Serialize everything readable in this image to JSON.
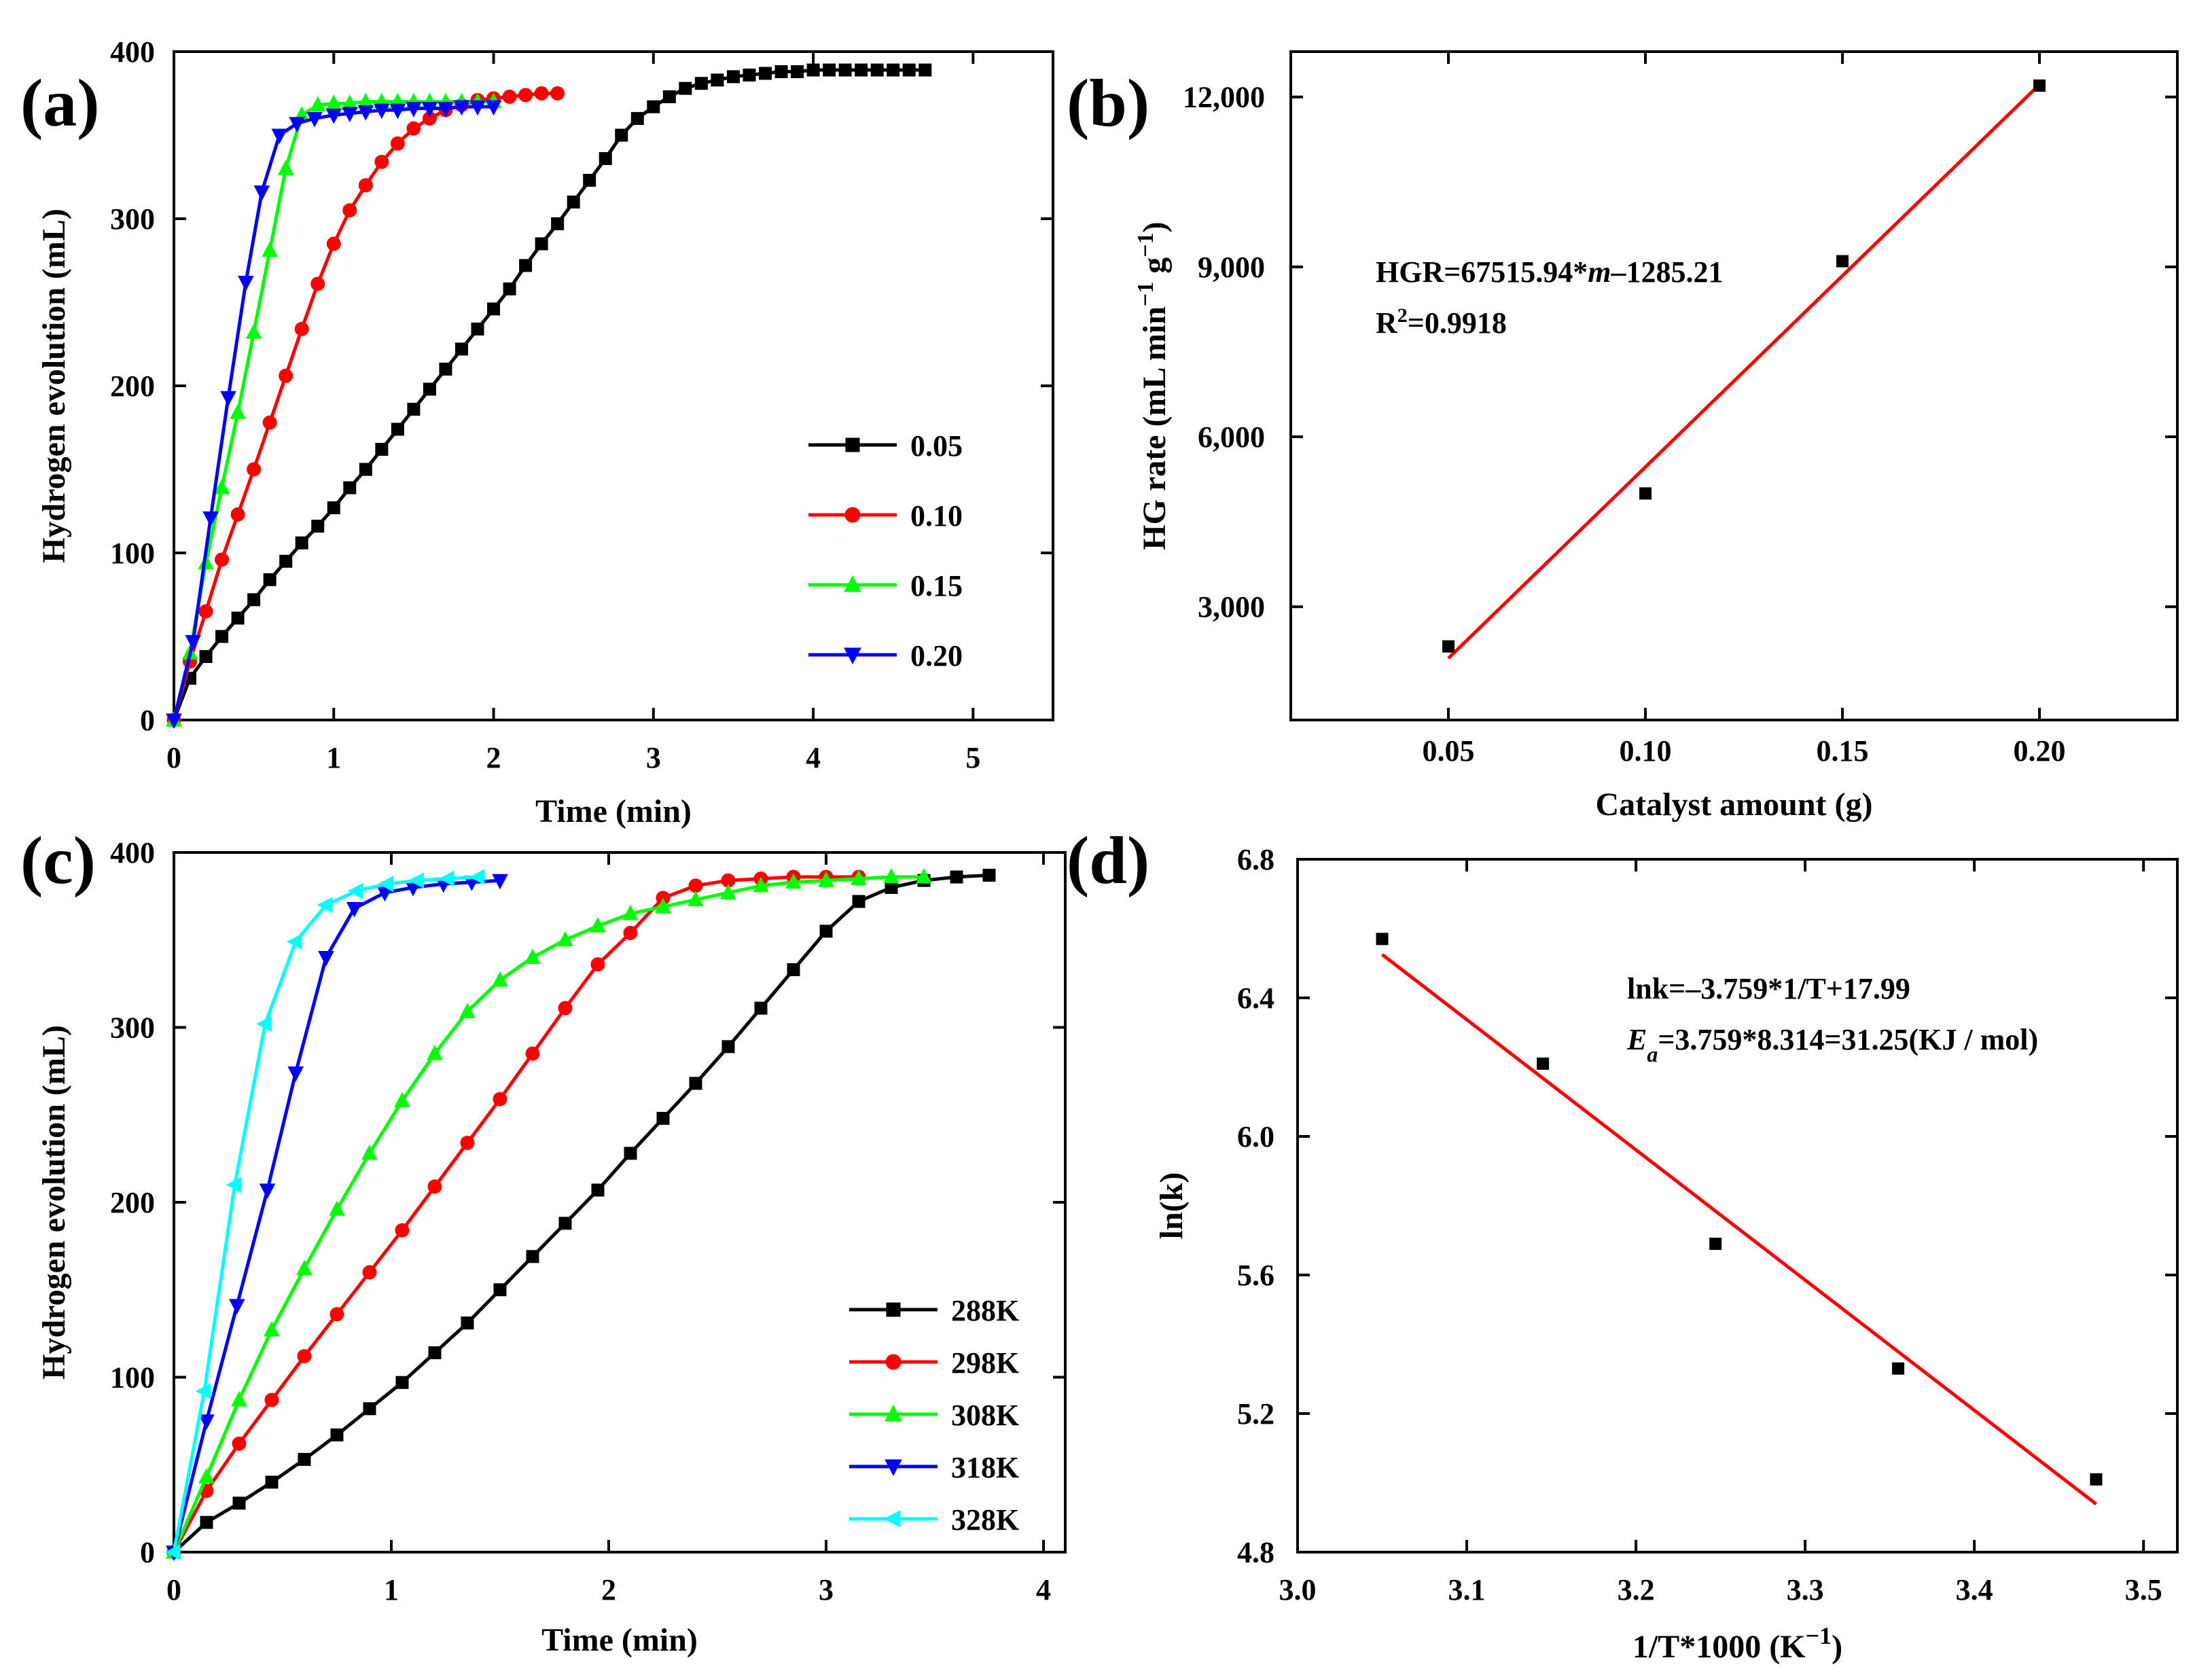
{
  "figure": {
    "title": ""
  },
  "chart_data": [
    {
      "panel": "(a)",
      "type": "line",
      "title": "",
      "xlabel": "Time (min)",
      "ylabel": "Hydrogen evolution (mL)",
      "xlim": [
        0,
        5.5
      ],
      "ylim": [
        0,
        400
      ],
      "xticks": [
        0,
        1,
        2,
        3,
        4,
        5
      ],
      "yticks": [
        0,
        100,
        200,
        300,
        400
      ],
      "legend_position": "right",
      "series": [
        {
          "name": "0.05",
          "color": "#000000",
          "marker": "square",
          "x": [
            0,
            0.1,
            0.2,
            0.3,
            0.4,
            0.5,
            0.6,
            0.7,
            0.8,
            0.9,
            1.0,
            1.1,
            1.2,
            1.3,
            1.4,
            1.5,
            1.6,
            1.7,
            1.8,
            1.9,
            2.0,
            2.1,
            2.2,
            2.3,
            2.4,
            2.5,
            2.6,
            2.7,
            2.8,
            2.9,
            3.0,
            3.1,
            3.2,
            3.3,
            3.4,
            3.5,
            3.6,
            3.7,
            3.8,
            3.9,
            4.0,
            4.1,
            4.2,
            4.3,
            4.4,
            4.5,
            4.6,
            4.7
          ],
          "y": [
            0,
            25,
            38,
            50,
            61,
            72,
            84,
            95,
            106,
            116,
            127,
            139,
            150,
            162,
            174,
            186,
            198,
            210,
            222,
            234,
            246,
            258,
            272,
            285,
            297,
            310,
            323,
            336,
            350,
            360,
            367,
            373,
            378,
            381,
            383,
            385,
            386,
            387,
            388,
            388,
            389,
            389,
            389,
            389,
            389,
            389,
            389,
            389
          ]
        },
        {
          "name": "0.10",
          "color": "#ff0000",
          "marker": "circle",
          "x": [
            0,
            0.1,
            0.2,
            0.3,
            0.4,
            0.5,
            0.6,
            0.7,
            0.8,
            0.9,
            1.0,
            1.1,
            1.2,
            1.3,
            1.4,
            1.5,
            1.6,
            1.7,
            1.8,
            1.9,
            2.0,
            2.1,
            2.2,
            2.3,
            2.4
          ],
          "y": [
            0,
            35,
            65,
            96,
            123,
            150,
            178,
            206,
            234,
            261,
            285,
            305,
            320,
            334,
            345,
            354,
            360,
            365,
            368,
            371,
            372,
            373,
            374,
            375,
            375
          ]
        },
        {
          "name": "0.15",
          "color": "#00ff00",
          "marker": "triangle-up",
          "x": [
            0,
            0.1,
            0.2,
            0.3,
            0.4,
            0.5,
            0.6,
            0.7,
            0.8,
            0.9,
            1.0,
            1.1,
            1.2,
            1.3,
            1.4,
            1.5,
            1.6,
            1.7,
            1.8,
            1.9,
            2.0
          ],
          "y": [
            0,
            40,
            94,
            139,
            184,
            232,
            281,
            330,
            362,
            368,
            369,
            369,
            370,
            370,
            370,
            370,
            370,
            370,
            370,
            370,
            370
          ]
        },
        {
          "name": "0.20",
          "color": "#0000ff",
          "marker": "triangle-down",
          "x": [
            0,
            0.12,
            0.23,
            0.34,
            0.45,
            0.55,
            0.66,
            0.77,
            0.88,
            1.0,
            1.1,
            1.2,
            1.3,
            1.4,
            1.5,
            1.6,
            1.7,
            1.8,
            1.9,
            2.0
          ],
          "y": [
            0,
            47,
            121,
            193,
            262,
            316,
            350,
            357,
            360,
            362,
            363,
            364,
            365,
            365,
            366,
            366,
            366,
            367,
            367,
            367
          ]
        }
      ]
    },
    {
      "panel": "(b)",
      "type": "scatter",
      "title": "",
      "xlabel": "Catalyst amount (g)",
      "ylabel": "HG rate (mL min⁻¹ g⁻¹)",
      "xlim": [
        0.01,
        0.235
      ],
      "ylim": [
        1000,
        12800
      ],
      "xticks": [
        0.05,
        0.1,
        0.15,
        0.2
      ],
      "xtick_labels": [
        "0.05",
        "0.10",
        "0.15",
        "0.20"
      ],
      "yticks": [
        3000,
        6000,
        9000,
        12000
      ],
      "ytick_labels": [
        "3,000",
        "6,000",
        "9,000",
        "12,000"
      ],
      "points": {
        "x": [
          0.05,
          0.1,
          0.15,
          0.2
        ],
        "y": [
          2300,
          5000,
          9100,
          12200
        ]
      },
      "fit": {
        "slope": 67515.94,
        "intercept": -1285.21,
        "x_range": [
          0.05,
          0.2
        ],
        "color": "#ff0000"
      },
      "annotations": [
        "HGR=67515.94*m–1285.21",
        "R²=0.9918"
      ]
    },
    {
      "panel": "(c)",
      "type": "line",
      "title": "",
      "xlabel": "Time (min)",
      "ylabel": "Hydrogen evolution (mL)",
      "xlim": [
        0,
        4.1
      ],
      "ylim": [
        0,
        400
      ],
      "xticks": [
        0,
        1,
        2,
        3,
        4
      ],
      "yticks": [
        0,
        100,
        200,
        300,
        400
      ],
      "legend_position": "bottom-right",
      "series": [
        {
          "name": "288K",
          "color": "#000000",
          "marker": "square",
          "x": [
            0,
            0.15,
            0.3,
            0.45,
            0.6,
            0.75,
            0.9,
            1.05,
            1.2,
            1.35,
            1.5,
            1.65,
            1.8,
            1.95,
            2.1,
            2.25,
            2.4,
            2.55,
            2.7,
            2.85,
            3.0,
            3.15,
            3.3,
            3.45,
            3.6,
            3.75
          ],
          "y": [
            0,
            17,
            28,
            40,
            53,
            67,
            82,
            97,
            114,
            131,
            150,
            169,
            188,
            207,
            228,
            248,
            268,
            289,
            311,
            333,
            355,
            372,
            380,
            384,
            386,
            387
          ]
        },
        {
          "name": "298K",
          "color": "#ff0000",
          "marker": "circle",
          "x": [
            0,
            0.15,
            0.3,
            0.45,
            0.6,
            0.75,
            0.9,
            1.05,
            1.2,
            1.35,
            1.5,
            1.65,
            1.8,
            1.95,
            2.1,
            2.25,
            2.4,
            2.55,
            2.7,
            2.85,
            3.0,
            3.15
          ],
          "y": [
            0,
            35,
            62,
            87,
            112,
            136,
            160,
            184,
            209,
            234,
            259,
            285,
            311,
            336,
            354,
            374,
            381,
            384,
            385,
            386,
            386,
            386
          ]
        },
        {
          "name": "308K",
          "color": "#00ff00",
          "marker": "triangle-up",
          "x": [
            0,
            0.15,
            0.3,
            0.45,
            0.6,
            0.75,
            0.9,
            1.05,
            1.2,
            1.35,
            1.5,
            1.65,
            1.8,
            1.95,
            2.1,
            2.25,
            2.4,
            2.55,
            2.7,
            2.85,
            3.0,
            3.15,
            3.3,
            3.45
          ],
          "y": [
            0,
            43,
            87,
            127,
            162,
            196,
            228,
            258,
            285,
            309,
            327,
            340,
            350,
            358,
            365,
            369,
            373,
            377,
            381,
            383,
            384,
            385,
            386,
            386
          ]
        },
        {
          "name": "318K",
          "color": "#0000ff",
          "marker": "triangle-down",
          "x": [
            0,
            0.15,
            0.29,
            0.43,
            0.56,
            0.7,
            0.83,
            0.97,
            1.1,
            1.24,
            1.37,
            1.5
          ],
          "y": [
            0,
            75,
            141,
            207,
            274,
            340,
            368,
            377,
            380,
            382,
            383,
            384
          ]
        },
        {
          "name": "328K",
          "color": "#00ffff",
          "marker": "triangle-left",
          "x": [
            0,
            0.14,
            0.28,
            0.42,
            0.56,
            0.7,
            0.84,
            0.98,
            1.12,
            1.26,
            1.4
          ],
          "y": [
            0,
            92,
            210,
            302,
            349,
            370,
            378,
            382,
            384,
            385,
            386
          ]
        }
      ]
    },
    {
      "panel": "(d)",
      "type": "scatter",
      "title": "",
      "xlabel": "1/T*1000 (K⁻¹)",
      "ylabel": "ln(k)",
      "xlim": [
        3.0,
        3.52
      ],
      "ylim": [
        4.8,
        6.8
      ],
      "xticks": [
        3.0,
        3.1,
        3.2,
        3.3,
        3.4,
        3.5
      ],
      "xtick_labels": [
        "3.0",
        "3.1",
        "3.2",
        "3.3",
        "3.4",
        "3.5"
      ],
      "yticks": [
        4.8,
        5.2,
        5.6,
        6.0,
        6.4,
        6.8
      ],
      "ytick_labels": [
        "4.8",
        "5.2",
        "5.6",
        "6.0",
        "6.4",
        "6.8"
      ],
      "points": {
        "x": [
          3.05,
          3.145,
          3.247,
          3.355,
          3.472
        ],
        "y": [
          6.57,
          6.21,
          5.69,
          5.33,
          5.01
        ]
      },
      "fit": {
        "slope": -3.759,
        "intercept": 17.99,
        "x_range": [
          3.05,
          3.472
        ],
        "color": "#ff0000"
      },
      "annotations": [
        "lnk=–3.759*1/T+17.99",
        "Ea=3.759*8.314=31.25(KJ / mol)"
      ]
    }
  ]
}
